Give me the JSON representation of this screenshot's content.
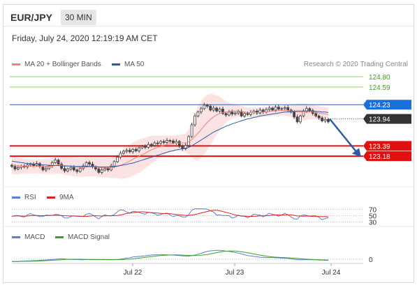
{
  "header": {
    "pair": "EUR/JPY",
    "timeframe": "30 MIN",
    "datetime": "Friday, July 24, 2020 12:19:19 AM CET"
  },
  "legend": {
    "ma20_label": "MA 20 + Bollinger Bands",
    "ma20_color": "#f08080",
    "ma50_label": "MA 50",
    "ma50_color": "#2a5da8",
    "credit": "Research © 2020 Trading Central",
    "rsi_label": "RSI",
    "rsi_color": "#5b7fd6",
    "rsi_ma_label": "9MA",
    "rsi_ma_color": "#e02020",
    "macd_label": "MACD",
    "macd_color": "#5b7fd6",
    "macd_signal_label": "MACD Signal",
    "macd_signal_color": "#3aa02a"
  },
  "chart_data": {
    "type": "candlestick",
    "x_labels": [
      "Jul 22",
      "Jul 23",
      "Jul 24"
    ],
    "ylim": [
      122.6,
      124.9
    ],
    "levels": [
      {
        "value": 124.8,
        "label": "124.80",
        "style": "green-line"
      },
      {
        "value": 124.59,
        "label": "124.59",
        "style": "green-line"
      },
      {
        "value": 124.23,
        "label": "124.23",
        "style": "blue-box"
      },
      {
        "value": 123.94,
        "label": "123.94",
        "style": "dark-box"
      },
      {
        "value": 123.39,
        "label": "123.39",
        "style": "red-box"
      },
      {
        "value": 123.18,
        "label": "123.18",
        "style": "red-box"
      }
    ],
    "close": [
      122.97,
      122.92,
      122.95,
      122.98,
      122.96,
      123.0,
      123.02,
      122.99,
      123.03,
      122.97,
      122.9,
      122.93,
      122.98,
      123.05,
      123.1,
      123.02,
      122.93,
      122.88,
      122.92,
      122.95,
      122.9,
      122.87,
      122.93,
      122.98,
      123.05,
      123.02,
      122.96,
      122.92,
      122.85,
      122.9,
      122.93,
      122.9,
      122.98,
      123.07,
      123.16,
      123.24,
      123.28,
      123.3,
      123.27,
      123.32,
      123.29,
      123.35,
      123.38,
      123.36,
      123.42,
      123.4,
      123.45,
      123.44,
      123.48,
      123.46,
      123.5,
      123.49,
      123.45,
      123.48,
      123.38,
      123.33,
      123.4,
      123.58,
      123.82,
      124.0,
      124.08,
      124.15,
      124.22,
      124.2,
      124.12,
      124.16,
      124.1,
      124.14,
      124.05,
      124.02,
      124.08,
      124.04,
      124.06,
      124.09,
      124.0,
      124.05,
      124.03,
      124.07,
      124.1,
      124.06,
      124.12,
      124.08,
      124.13,
      124.16,
      124.12,
      124.18,
      124.14,
      124.15,
      124.17,
      124.12,
      124.08,
      123.98,
      123.88,
      124.0,
      124.1,
      124.15,
      124.11,
      124.05,
      124.0,
      123.96,
      123.9,
      123.93,
      123.88
    ],
    "ma20": [
      123.0,
      122.99,
      122.98,
      122.98,
      122.97,
      122.97,
      122.97,
      122.97,
      122.97,
      122.97,
      122.97,
      122.97,
      122.97,
      122.98,
      122.99,
      123.0,
      123.0,
      122.99,
      122.98,
      122.97,
      122.96,
      122.96,
      122.95,
      122.95,
      122.96,
      122.96,
      122.96,
      122.96,
      122.95,
      122.95,
      122.95,
      122.94,
      122.94,
      122.95,
      122.97,
      122.99,
      123.02,
      123.05,
      123.08,
      123.12,
      123.15,
      123.18,
      123.21,
      123.24,
      123.28,
      123.31,
      123.34,
      123.36,
      123.38,
      123.4,
      123.42,
      123.43,
      123.44,
      123.45,
      123.45,
      123.45,
      123.45,
      123.47,
      123.52,
      123.58,
      123.65,
      123.72,
      123.8,
      123.87,
      123.93,
      123.98,
      124.02,
      124.05,
      124.07,
      124.08,
      124.09,
      124.1,
      124.1,
      124.1,
      124.09,
      124.08,
      124.07,
      124.07,
      124.07,
      124.07,
      124.07,
      124.08,
      124.08,
      124.09,
      124.1,
      124.1,
      124.11,
      124.11,
      124.11,
      124.11,
      124.1,
      124.09,
      124.08,
      124.08,
      124.08,
      124.08,
      124.08,
      124.08,
      124.07,
      124.06,
      124.05,
      124.04,
      124.03
    ],
    "bb_width": [
      0.18,
      0.18,
      0.17,
      0.16,
      0.15,
      0.15,
      0.14,
      0.14,
      0.14,
      0.14,
      0.15,
      0.15,
      0.15,
      0.16,
      0.17,
      0.17,
      0.18,
      0.19,
      0.19,
      0.19,
      0.19,
      0.19,
      0.19,
      0.19,
      0.19,
      0.19,
      0.19,
      0.19,
      0.2,
      0.2,
      0.2,
      0.2,
      0.21,
      0.22,
      0.24,
      0.27,
      0.3,
      0.32,
      0.33,
      0.34,
      0.34,
      0.34,
      0.33,
      0.31,
      0.3,
      0.28,
      0.26,
      0.24,
      0.22,
      0.2,
      0.18,
      0.17,
      0.16,
      0.16,
      0.17,
      0.18,
      0.19,
      0.25,
      0.36,
      0.48,
      0.55,
      0.58,
      0.58,
      0.56,
      0.52,
      0.46,
      0.4,
      0.34,
      0.28,
      0.22,
      0.18,
      0.15,
      0.13,
      0.12,
      0.11,
      0.11,
      0.1,
      0.1,
      0.1,
      0.1,
      0.1,
      0.1,
      0.1,
      0.1,
      0.1,
      0.1,
      0.1,
      0.1,
      0.1,
      0.11,
      0.12,
      0.14,
      0.16,
      0.17,
      0.17,
      0.16,
      0.15,
      0.14,
      0.14,
      0.14,
      0.14,
      0.14,
      0.14
    ],
    "ma50": [
      123.08,
      123.07,
      123.06,
      123.05,
      123.04,
      123.03,
      123.03,
      123.02,
      123.02,
      123.01,
      123.0,
      123.0,
      122.99,
      122.99,
      122.99,
      122.99,
      122.98,
      122.98,
      122.98,
      122.98,
      122.97,
      122.97,
      122.97,
      122.97,
      122.97,
      122.97,
      122.97,
      122.97,
      122.96,
      122.96,
      122.96,
      122.96,
      122.96,
      122.97,
      122.98,
      122.99,
      123.0,
      123.01,
      123.03,
      123.04,
      123.06,
      123.08,
      123.1,
      123.12,
      123.14,
      123.16,
      123.18,
      123.2,
      123.22,
      123.24,
      123.26,
      123.28,
      123.29,
      123.31,
      123.32,
      123.33,
      123.34,
      123.36,
      123.39,
      123.43,
      123.47,
      123.51,
      123.55,
      123.59,
      123.63,
      123.67,
      123.7,
      123.73,
      123.76,
      123.79,
      123.81,
      123.84,
      123.86,
      123.88,
      123.9,
      123.92,
      123.94,
      123.95,
      123.97,
      123.98,
      124.0,
      124.01,
      124.02,
      124.03,
      124.04,
      124.05,
      124.06,
      124.07,
      124.08,
      124.08,
      124.09,
      124.09,
      124.1,
      124.1,
      124.1,
      124.1,
      124.1,
      124.1,
      124.09,
      124.09,
      124.08,
      124.08,
      124.07
    ],
    "forecast": {
      "from": 123.94,
      "to": 123.39
    },
    "rsi": {
      "ticks": [
        70,
        50,
        30
      ],
      "ylim": [
        20,
        80
      ]
    },
    "macd": {
      "ticks": [
        0
      ]
    }
  }
}
